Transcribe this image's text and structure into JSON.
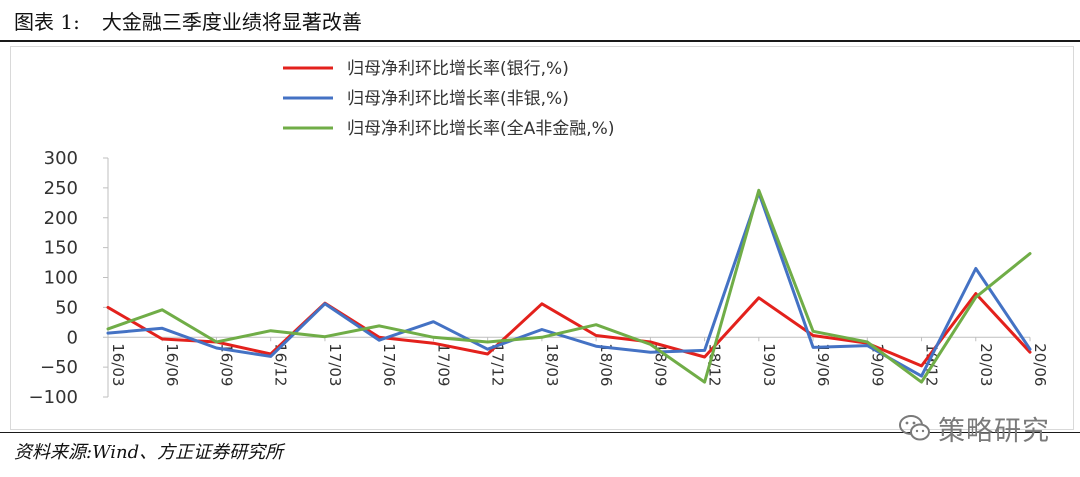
{
  "header": {
    "figure_label": "图表 1:",
    "title": "大金融三季度业绩将显著改善"
  },
  "source": "资料来源:Wind、方正证券研究所",
  "watermark": {
    "icon": "wechat-icon",
    "text": "策略研究"
  },
  "chart_data": {
    "type": "line",
    "title": "",
    "xlabel": "",
    "ylabel": "",
    "ylim": [
      -100,
      300
    ],
    "yticks": [
      300,
      250,
      200,
      150,
      100,
      50,
      0,
      -50,
      -100
    ],
    "grid": false,
    "legend_position": "top",
    "categories": [
      "16/03",
      "16/06",
      "16/09",
      "16/12",
      "17/03",
      "17/06",
      "17/09",
      "17/12",
      "18/03",
      "18/06",
      "18/09",
      "18/12",
      "19/03",
      "19/06",
      "19/09",
      "19/12",
      "20/03",
      "20/06"
    ],
    "series": [
      {
        "name": "归母净利环比增长率(银行,%)",
        "color": "#e3211c",
        "values": [
          50,
          -3,
          -8,
          -28,
          57,
          0,
          -10,
          -28,
          56,
          3,
          -8,
          -33,
          66,
          3,
          -10,
          -48,
          73,
          -25
        ]
      },
      {
        "name": "归母净利环比增长率(非银,%)",
        "color": "#4472c4",
        "values": [
          7,
          15,
          -18,
          -32,
          56,
          -5,
          26,
          -20,
          13,
          -15,
          -25,
          -22,
          242,
          -17,
          -14,
          -65,
          115,
          -20
        ]
      },
      {
        "name": "归母净利环比增长率(全A非金融,%)",
        "color": "#70ad47",
        "values": [
          14,
          46,
          -8,
          11,
          1,
          19,
          0,
          -8,
          0,
          21,
          -12,
          -75,
          246,
          10,
          -8,
          -75,
          67,
          140
        ]
      }
    ]
  }
}
